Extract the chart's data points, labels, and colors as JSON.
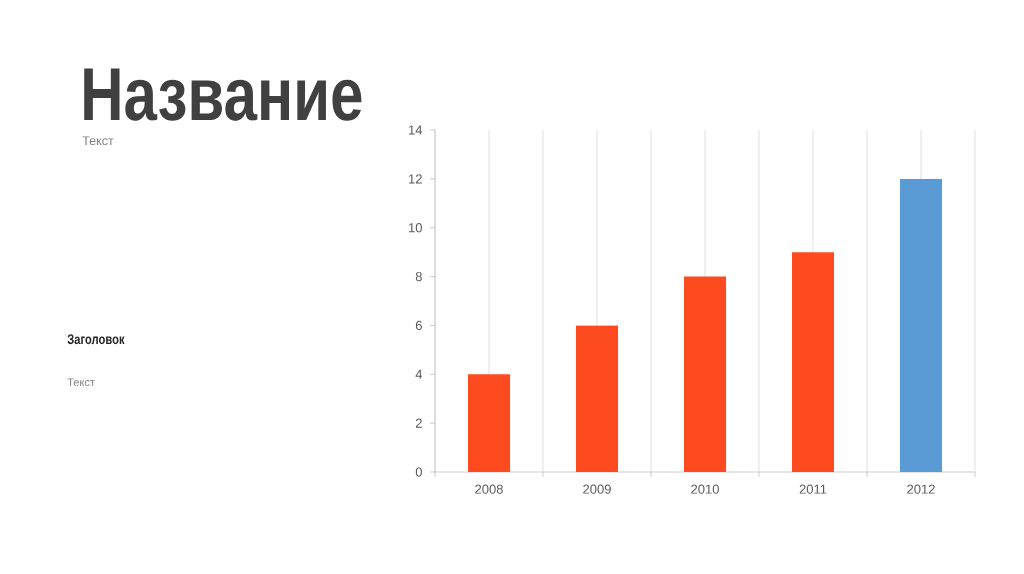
{
  "chart_data": {
    "type": "bar",
    "title": "Название",
    "subtitle": "Текст",
    "annotations": [
      "Заголовок",
      "Текст"
    ],
    "categories": [
      "2008",
      "2009",
      "2010",
      "2011",
      "2012"
    ],
    "values": [
      4,
      6,
      8,
      9,
      12
    ],
    "colors": [
      "#fe4a1f",
      "#fe4a1f",
      "#fe4a1f",
      "#fe4a1f",
      "#5b9bd5"
    ],
    "ylim": [
      0,
      14
    ],
    "yticks": [
      0,
      2,
      4,
      6,
      8,
      10,
      12,
      14
    ],
    "grid": "x"
  }
}
